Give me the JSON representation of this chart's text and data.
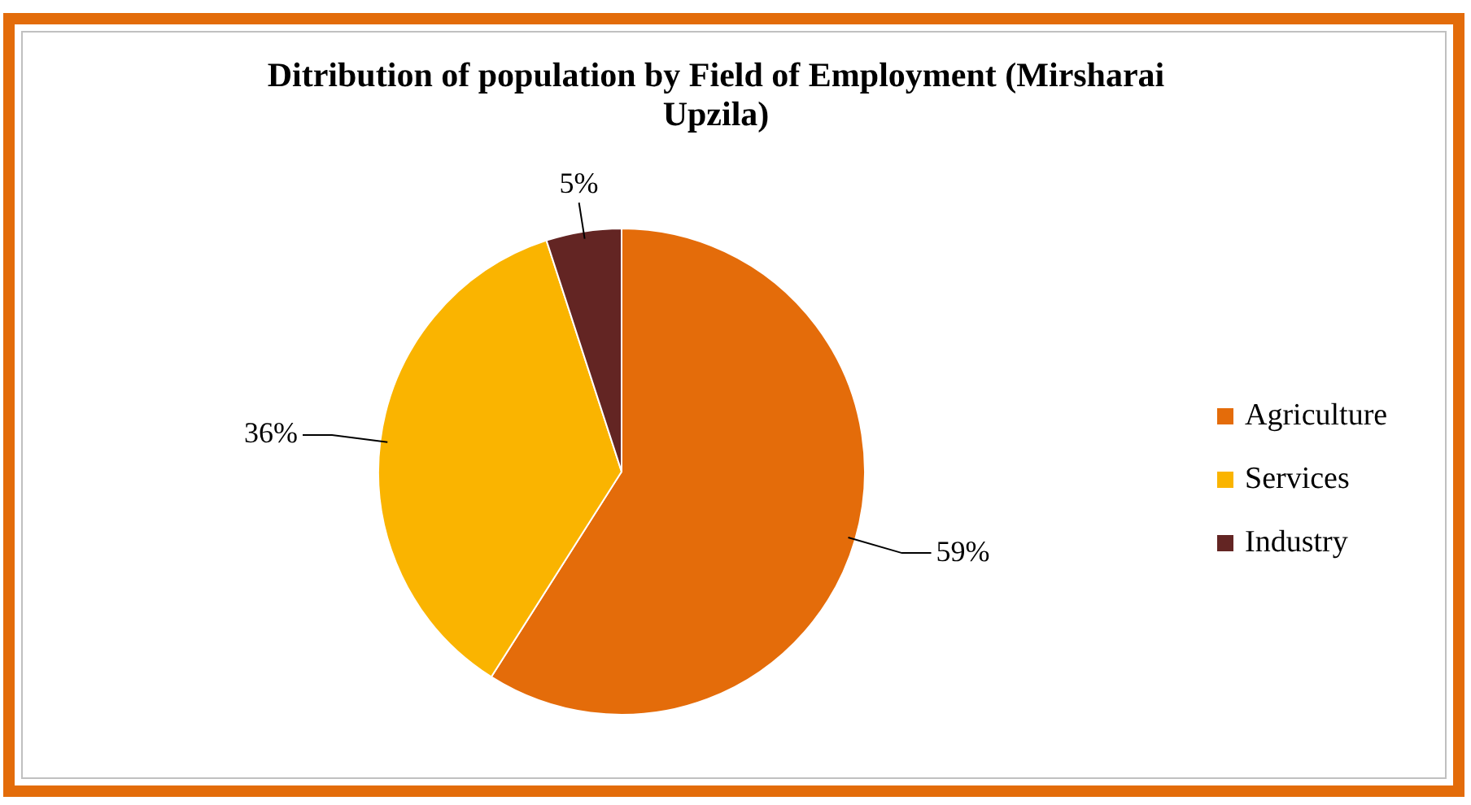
{
  "chart_data": {
    "type": "pie",
    "title": "Ditribution of population by Field of Employment (Mirsharai Upzila)",
    "categories": [
      "Agriculture",
      "Services",
      "Industry"
    ],
    "values": [
      59,
      36,
      5
    ],
    "colors": [
      "#e46c0a",
      "#fab400",
      "#632523"
    ],
    "value_labels": [
      "59%",
      "36%",
      "5%"
    ],
    "legend": "right"
  }
}
